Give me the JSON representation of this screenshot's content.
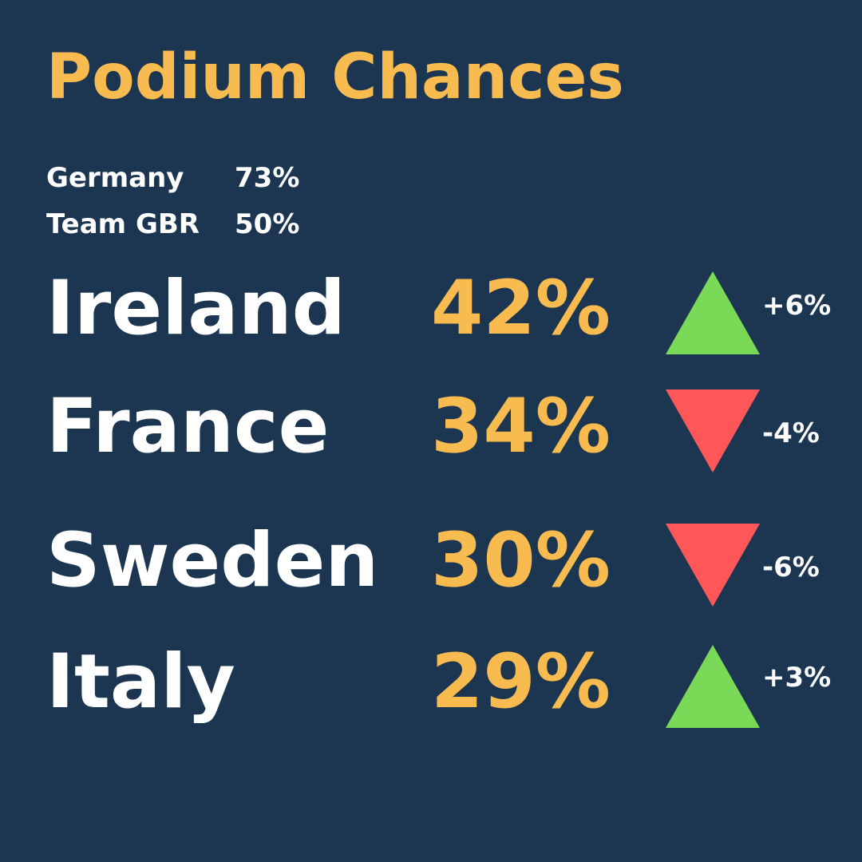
{
  "title": "Podium Chances",
  "top_teams": [
    {
      "name": "Germany",
      "value": "73%"
    },
    {
      "name": "Team GBR",
      "value": "50%"
    }
  ],
  "rankings": [
    {
      "country": "Ireland",
      "chance": "42%",
      "change": "+6%",
      "direction": "up",
      "icon": "up-triangle-icon",
      "color": "#7ad957"
    },
    {
      "country": "France",
      "chance": "34%",
      "change": "-4%",
      "direction": "down",
      "icon": "down-triangle-icon",
      "color": "#ff5757"
    },
    {
      "country": "Sweden",
      "chance": "30%",
      "change": "-6%",
      "direction": "down",
      "icon": "down-triangle-icon",
      "color": "#ff5757"
    },
    {
      "country": "Italy",
      "chance": "29%",
      "change": "+3%",
      "direction": "up",
      "icon": "up-triangle-icon",
      "color": "#7ad957"
    }
  ],
  "colors": {
    "background": "#1c3652",
    "accent": "#f8bb4f",
    "text": "#ffffff",
    "up": "#7ad957",
    "down": "#ff5757"
  }
}
